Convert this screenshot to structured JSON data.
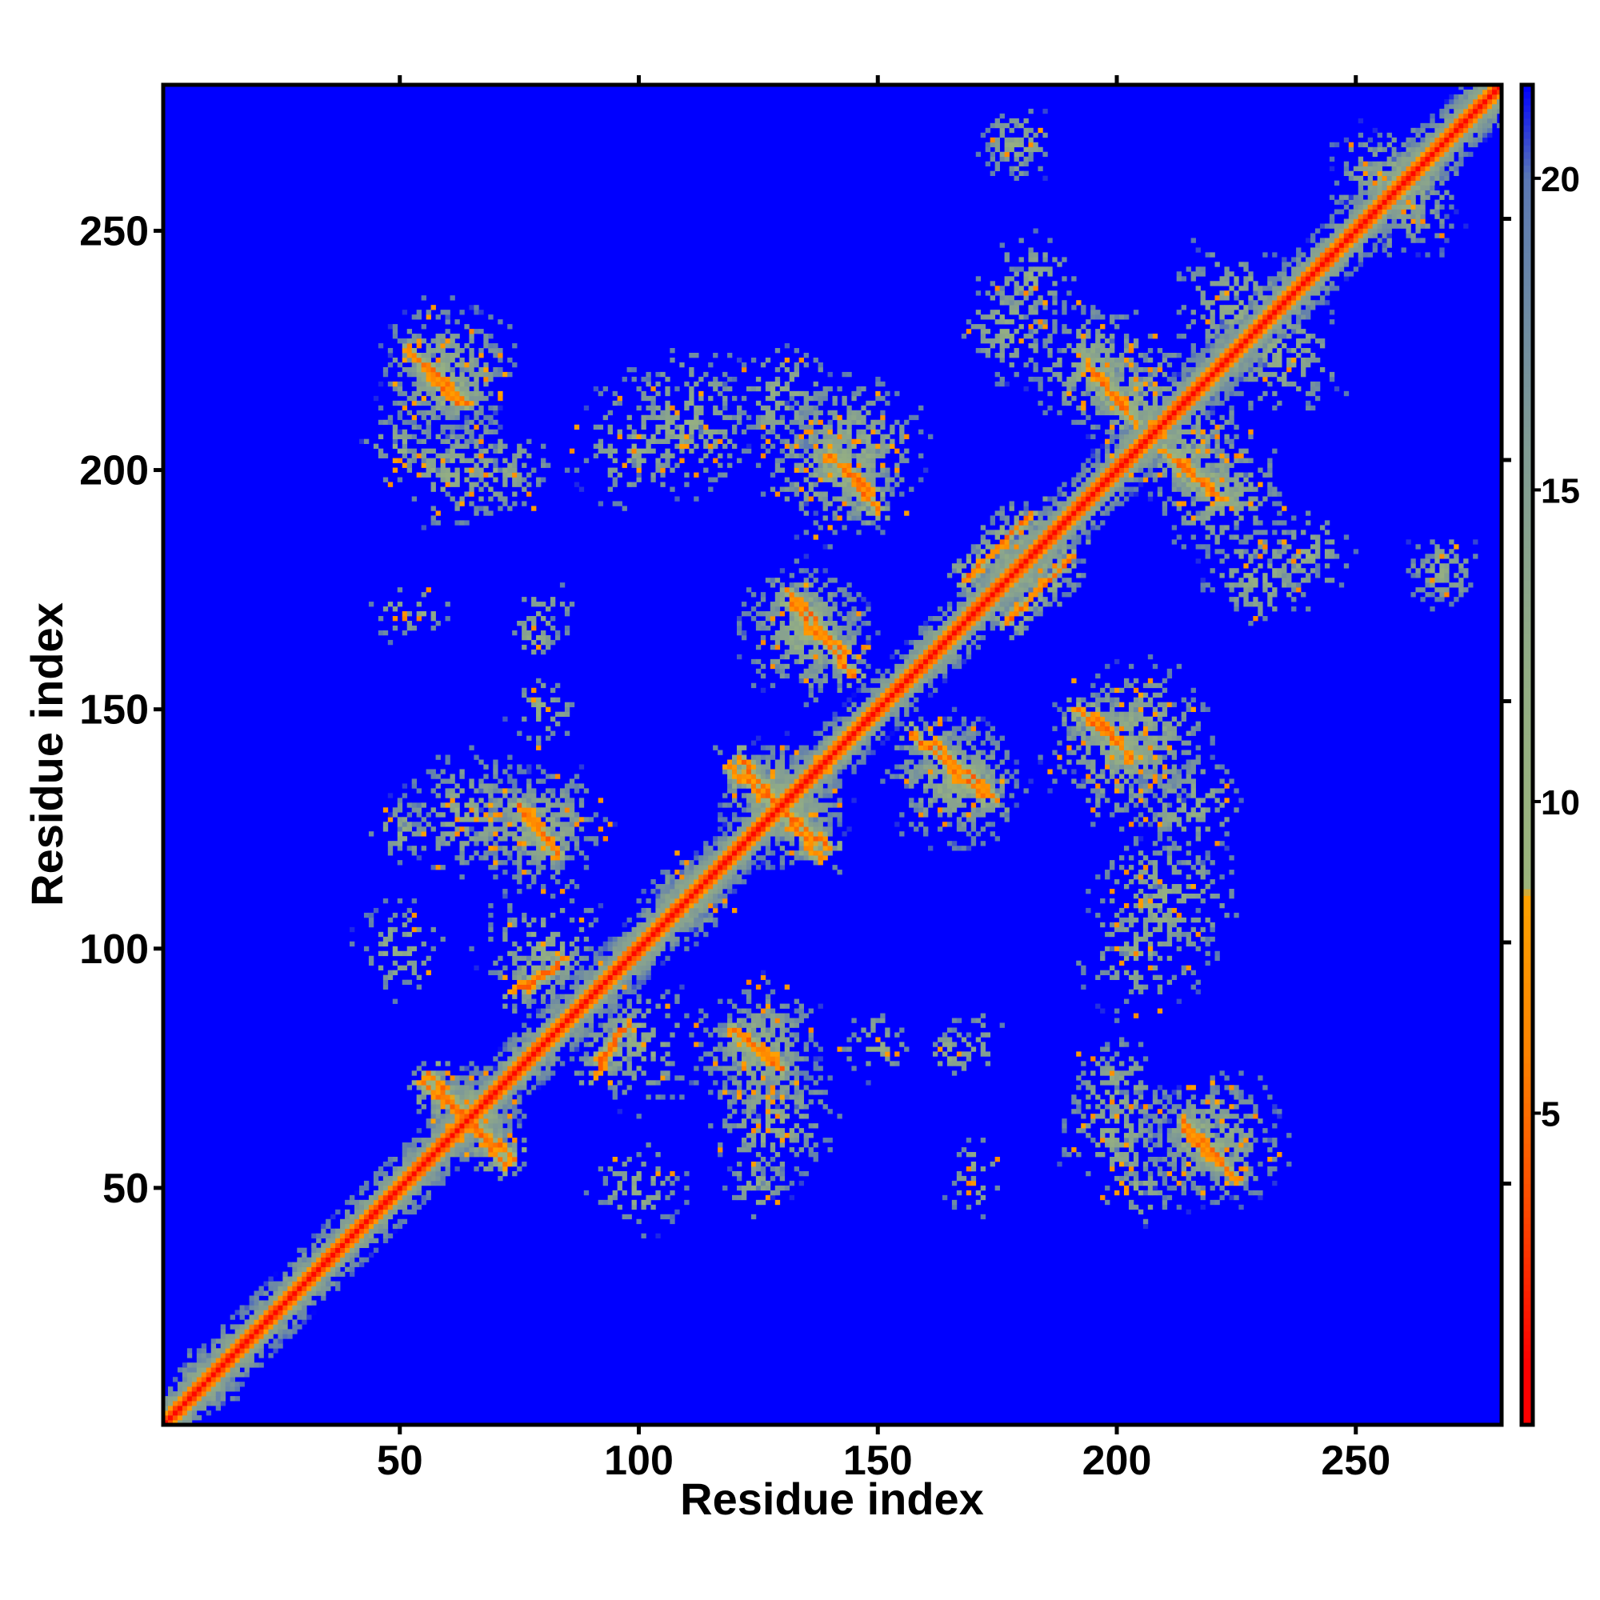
{
  "chart_data": {
    "type": "heatmap",
    "title": "",
    "xlabel": "Residue index",
    "ylabel": "Residue index",
    "xlim": [
      1,
      280
    ],
    "ylim": [
      1,
      280
    ],
    "xticks": [
      50,
      100,
      150,
      200,
      250
    ],
    "yticks": [
      50,
      100,
      150,
      200,
      250
    ],
    "grid": false,
    "colorbar": {
      "range": [
        0,
        21.5
      ],
      "ticks": [
        5,
        10,
        15,
        20
      ],
      "colors": [
        {
          "value": 1,
          "color": "#ff0000"
        },
        {
          "value": 3.5,
          "color": "#ff4a00"
        },
        {
          "value": 6,
          "color": "#ff8400"
        },
        {
          "value": 8.5,
          "color": "#ffa200"
        },
        {
          "value": 8.6,
          "color": "#9cb57c"
        },
        {
          "value": 12,
          "color": "#93ad84"
        },
        {
          "value": 16,
          "color": "#7f9a96"
        },
        {
          "value": 20,
          "color": "#5a78b4"
        },
        {
          "value": 21.5,
          "color": "#0000ff"
        }
      ]
    },
    "background_value": 21.5,
    "description_of_values": "Symmetric residue-residue distance map; values capped at the colorbar maximum (blue).",
    "diagonal": {
      "value": 1.5,
      "width": 3
    },
    "contact_streaks": [
      {
        "from": [
          56,
          74
        ],
        "to": [
          72,
          55
        ],
        "type": "anti"
      },
      {
        "from": [
          121,
          140
        ],
        "to": [
          138,
          119
        ],
        "type": "anti"
      },
      {
        "from": [
          157,
          145
        ],
        "to": [
          172,
          132
        ],
        "type": "anti"
      },
      {
        "from": [
          131,
          175
        ],
        "to": [
          143,
          162
        ],
        "type": "anti"
      },
      {
        "from": [
          76,
          128
        ],
        "to": [
          83,
          120
        ],
        "type": "anti"
      },
      {
        "from": [
          142,
          201
        ],
        "to": [
          150,
          192
        ],
        "type": "anti"
      },
      {
        "from": [
          56,
          222
        ],
        "to": [
          64,
          214
        ],
        "type": "anti"
      },
      {
        "from": [
          195,
          220
        ],
        "to": [
          204,
          210
        ],
        "type": "anti"
      },
      {
        "from": [
          213,
          202
        ],
        "to": [
          222,
          194
        ],
        "type": "anti"
      },
      {
        "from": [
          195,
          149
        ],
        "to": [
          203,
          140
        ],
        "type": "anti"
      },
      {
        "from": [
          214,
          62
        ],
        "to": [
          225,
          52
        ],
        "type": "anti"
      },
      {
        "from": [
          122,
          82
        ],
        "to": [
          130,
          75
        ],
        "type": "anti"
      },
      {
        "from": [
          77,
          92
        ],
        "to": [
          84,
          98
        ],
        "type": "parallel"
      },
      {
        "from": [
          91,
          74
        ],
        "to": [
          96,
          83
        ],
        "type": "parallel"
      },
      {
        "from": [
          168,
          177
        ],
        "to": [
          182,
          191
        ],
        "type": "parallel"
      }
    ],
    "contact_regions": [
      {
        "center": [
          65,
          66
        ],
        "radius": 10,
        "density": 0.85
      },
      {
        "center": [
          64,
          128
        ],
        "radius": 14,
        "density": 0.5
      },
      {
        "center": [
          78,
          125
        ],
        "radius": 12,
        "density": 0.55
      },
      {
        "center": [
          100,
          80
        ],
        "radius": 14,
        "density": 0.45
      },
      {
        "center": [
          125,
          80
        ],
        "radius": 14,
        "density": 0.5
      },
      {
        "center": [
          150,
          80
        ],
        "radius": 8,
        "density": 0.35
      },
      {
        "center": [
          130,
          130
        ],
        "radius": 14,
        "density": 0.6
      },
      {
        "center": [
          165,
          135
        ],
        "radius": 14,
        "density": 0.55
      },
      {
        "center": [
          135,
          168
        ],
        "radius": 13,
        "density": 0.55
      },
      {
        "center": [
          60,
          220
        ],
        "radius": 15,
        "density": 0.5
      },
      {
        "center": [
          60,
          200
        ],
        "radius": 12,
        "density": 0.5
      },
      {
        "center": [
          110,
          210
        ],
        "radius": 16,
        "density": 0.45
      },
      {
        "center": [
          145,
          205
        ],
        "radius": 16,
        "density": 0.5
      },
      {
        "center": [
          200,
          140
        ],
        "radius": 16,
        "density": 0.5
      },
      {
        "center": [
          215,
          130
        ],
        "radius": 12,
        "density": 0.45
      },
      {
        "center": [
          205,
          100
        ],
        "radius": 14,
        "density": 0.35
      },
      {
        "center": [
          200,
          70
        ],
        "radius": 12,
        "density": 0.45
      },
      {
        "center": [
          220,
          60
        ],
        "radius": 13,
        "density": 0.5
      },
      {
        "center": [
          205,
          215
        ],
        "radius": 14,
        "density": 0.55
      },
      {
        "center": [
          222,
          195
        ],
        "radius": 14,
        "density": 0.55
      },
      {
        "center": [
          240,
          182
        ],
        "radius": 10,
        "density": 0.4
      },
      {
        "center": [
          268,
          180
        ],
        "radius": 8,
        "density": 0.45
      },
      {
        "center": [
          178,
          268
        ],
        "radius": 7,
        "density": 0.45
      },
      {
        "center": [
          178,
          230
        ],
        "radius": 12,
        "density": 0.45
      },
      {
        "center": [
          225,
          235
        ],
        "radius": 14,
        "density": 0.45
      },
      {
        "center": [
          80,
          170
        ],
        "radius": 7,
        "density": 0.35
      },
      {
        "center": [
          50,
          170
        ],
        "radius": 6,
        "density": 0.25
      },
      {
        "center": [
          165,
          78
        ],
        "radius": 6,
        "density": 0.5
      },
      {
        "center": [
          170,
          55
        ],
        "radius": 6,
        "density": 0.3
      },
      {
        "center": [
          205,
          50
        ],
        "radius": 8,
        "density": 0.3
      },
      {
        "center": [
          125,
          50
        ],
        "radius": 7,
        "density": 0.45
      },
      {
        "center": [
          10,
          8
        ],
        "radius": 6,
        "density": 0.5
      },
      {
        "center": [
          50,
          100
        ],
        "radius": 10,
        "density": 0.4
      },
      {
        "center": [
          110,
          110
        ],
        "radius": 9,
        "density": 0.5
      },
      {
        "center": [
          180,
          180
        ],
        "radius": 12,
        "density": 0.5
      },
      {
        "center": [
          258,
          260
        ],
        "radius": 14,
        "density": 0.5
      }
    ]
  }
}
